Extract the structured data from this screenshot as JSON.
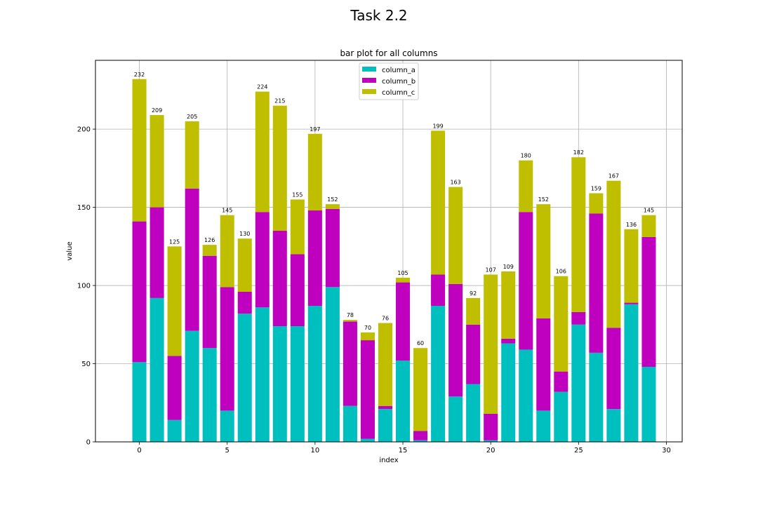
{
  "figure": {
    "suptitle": "Task 2.2"
  },
  "chart_data": {
    "type": "bar",
    "stacked": true,
    "title": "bar plot for all columns",
    "xlabel": "index",
    "ylabel": "value",
    "xlim": [
      -2.5,
      30.9
    ],
    "ylim": [
      0,
      244
    ],
    "xticks": [
      0,
      5,
      10,
      15,
      20,
      25,
      30
    ],
    "yticks": [
      0,
      50,
      100,
      150,
      200
    ],
    "grid": true,
    "legend_position": "upper center",
    "x": [
      0,
      1,
      2,
      3,
      4,
      5,
      6,
      7,
      8,
      9,
      10,
      11,
      12,
      13,
      14,
      15,
      16,
      17,
      18,
      19,
      20,
      21,
      22,
      23,
      24,
      25,
      26,
      27,
      28,
      29
    ],
    "series": [
      {
        "name": "column_a",
        "color": "#00bfbf",
        "values": [
          51,
          92,
          14,
          71,
          60,
          20,
          82,
          86,
          74,
          74,
          87,
          99,
          23,
          2,
          21,
          52,
          1,
          87,
          29,
          37,
          1,
          63,
          59,
          20,
          32,
          75,
          57,
          21,
          88,
          48
        ]
      },
      {
        "name": "column_b",
        "color": "#bf00bf",
        "values": [
          90,
          58,
          41,
          91,
          59,
          79,
          14,
          61,
          61,
          46,
          61,
          50,
          54,
          63,
          2,
          50,
          6,
          20,
          72,
          38,
          17,
          3,
          88,
          59,
          13,
          8,
          89,
          52,
          1,
          83
        ]
      },
      {
        "name": "column_c",
        "color": "#bfbf00",
        "values": [
          91,
          59,
          70,
          43,
          7,
          46,
          34,
          77,
          80,
          35,
          49,
          3,
          1,
          5,
          53,
          3,
          53,
          92,
          62,
          17,
          89,
          43,
          33,
          73,
          61,
          99,
          13,
          94,
          47,
          14
        ]
      }
    ],
    "totals": [
      232,
      209,
      125,
      205,
      126,
      145,
      130,
      224,
      215,
      155,
      197,
      152,
      78,
      70,
      76,
      105,
      60,
      199,
      163,
      92,
      107,
      109,
      180,
      152,
      106,
      182,
      159,
      167,
      136,
      145
    ]
  }
}
